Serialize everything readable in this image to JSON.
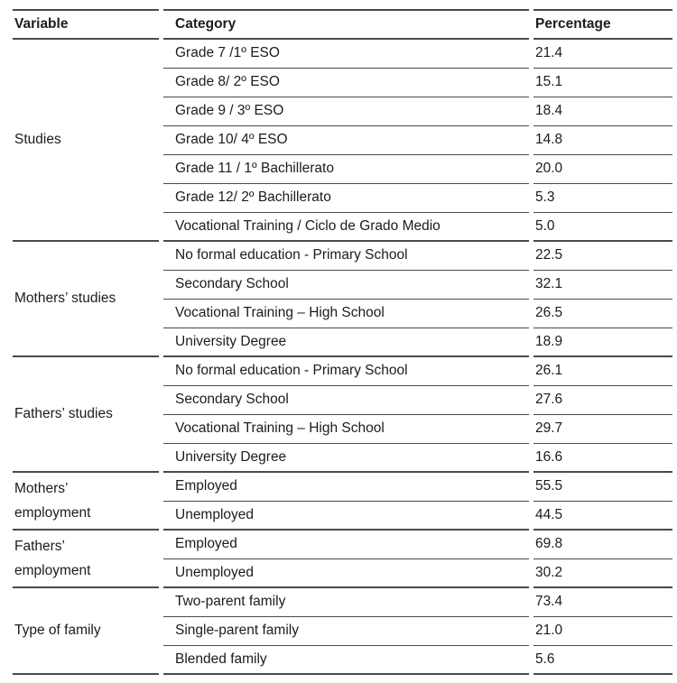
{
  "colors": {
    "text": "#1c1c1c",
    "line": "#4a4a4a",
    "background": "#ffffff"
  },
  "table": {
    "columns": [
      "Variable",
      "Category",
      "Percentage"
    ],
    "groups": [
      {
        "variable": "Studies",
        "rows": [
          [
            "Grade 7 /1º ESO",
            "21.4"
          ],
          [
            "Grade 8/ 2º ESO",
            "15.1"
          ],
          [
            "Grade 9 / 3º ESO",
            "18.4"
          ],
          [
            "Grade 10/ 4º ESO",
            "14.8"
          ],
          [
            "Grade 11 / 1º Bachillerato",
            "20.0"
          ],
          [
            "Grade 12/ 2º Bachillerato",
            "5.3"
          ],
          [
            "Vocational Training / Ciclo de Grado Medio",
            "5.0"
          ]
        ]
      },
      {
        "variable": "Mothers’ studies",
        "rows": [
          [
            "No formal education - Primary School",
            "22.5"
          ],
          [
            "Secondary School",
            "32.1"
          ],
          [
            "Vocational Training – High School",
            "26.5"
          ],
          [
            "University Degree",
            "18.9"
          ]
        ]
      },
      {
        "variable": "Fathers’ studies",
        "rows": [
          [
            "No formal education - Primary School",
            "26.1"
          ],
          [
            "Secondary School",
            "27.6"
          ],
          [
            "Vocational Training – High School",
            "29.7"
          ],
          [
            "University Degree",
            "16.6"
          ]
        ]
      },
      {
        "variable": "Mothers’\nemployment",
        "rows": [
          [
            "Employed",
            "55.5"
          ],
          [
            "Unemployed",
            "44.5"
          ]
        ]
      },
      {
        "variable": "Fathers’\nemployment",
        "rows": [
          [
            "Employed",
            "69.8"
          ],
          [
            "Unemployed",
            "30.2"
          ]
        ]
      },
      {
        "variable": "Type of family",
        "rows": [
          [
            "Two-parent family",
            "73.4"
          ],
          [
            "Single-parent family",
            "21.0"
          ],
          [
            "Blended family",
            "5.6"
          ]
        ]
      }
    ]
  }
}
